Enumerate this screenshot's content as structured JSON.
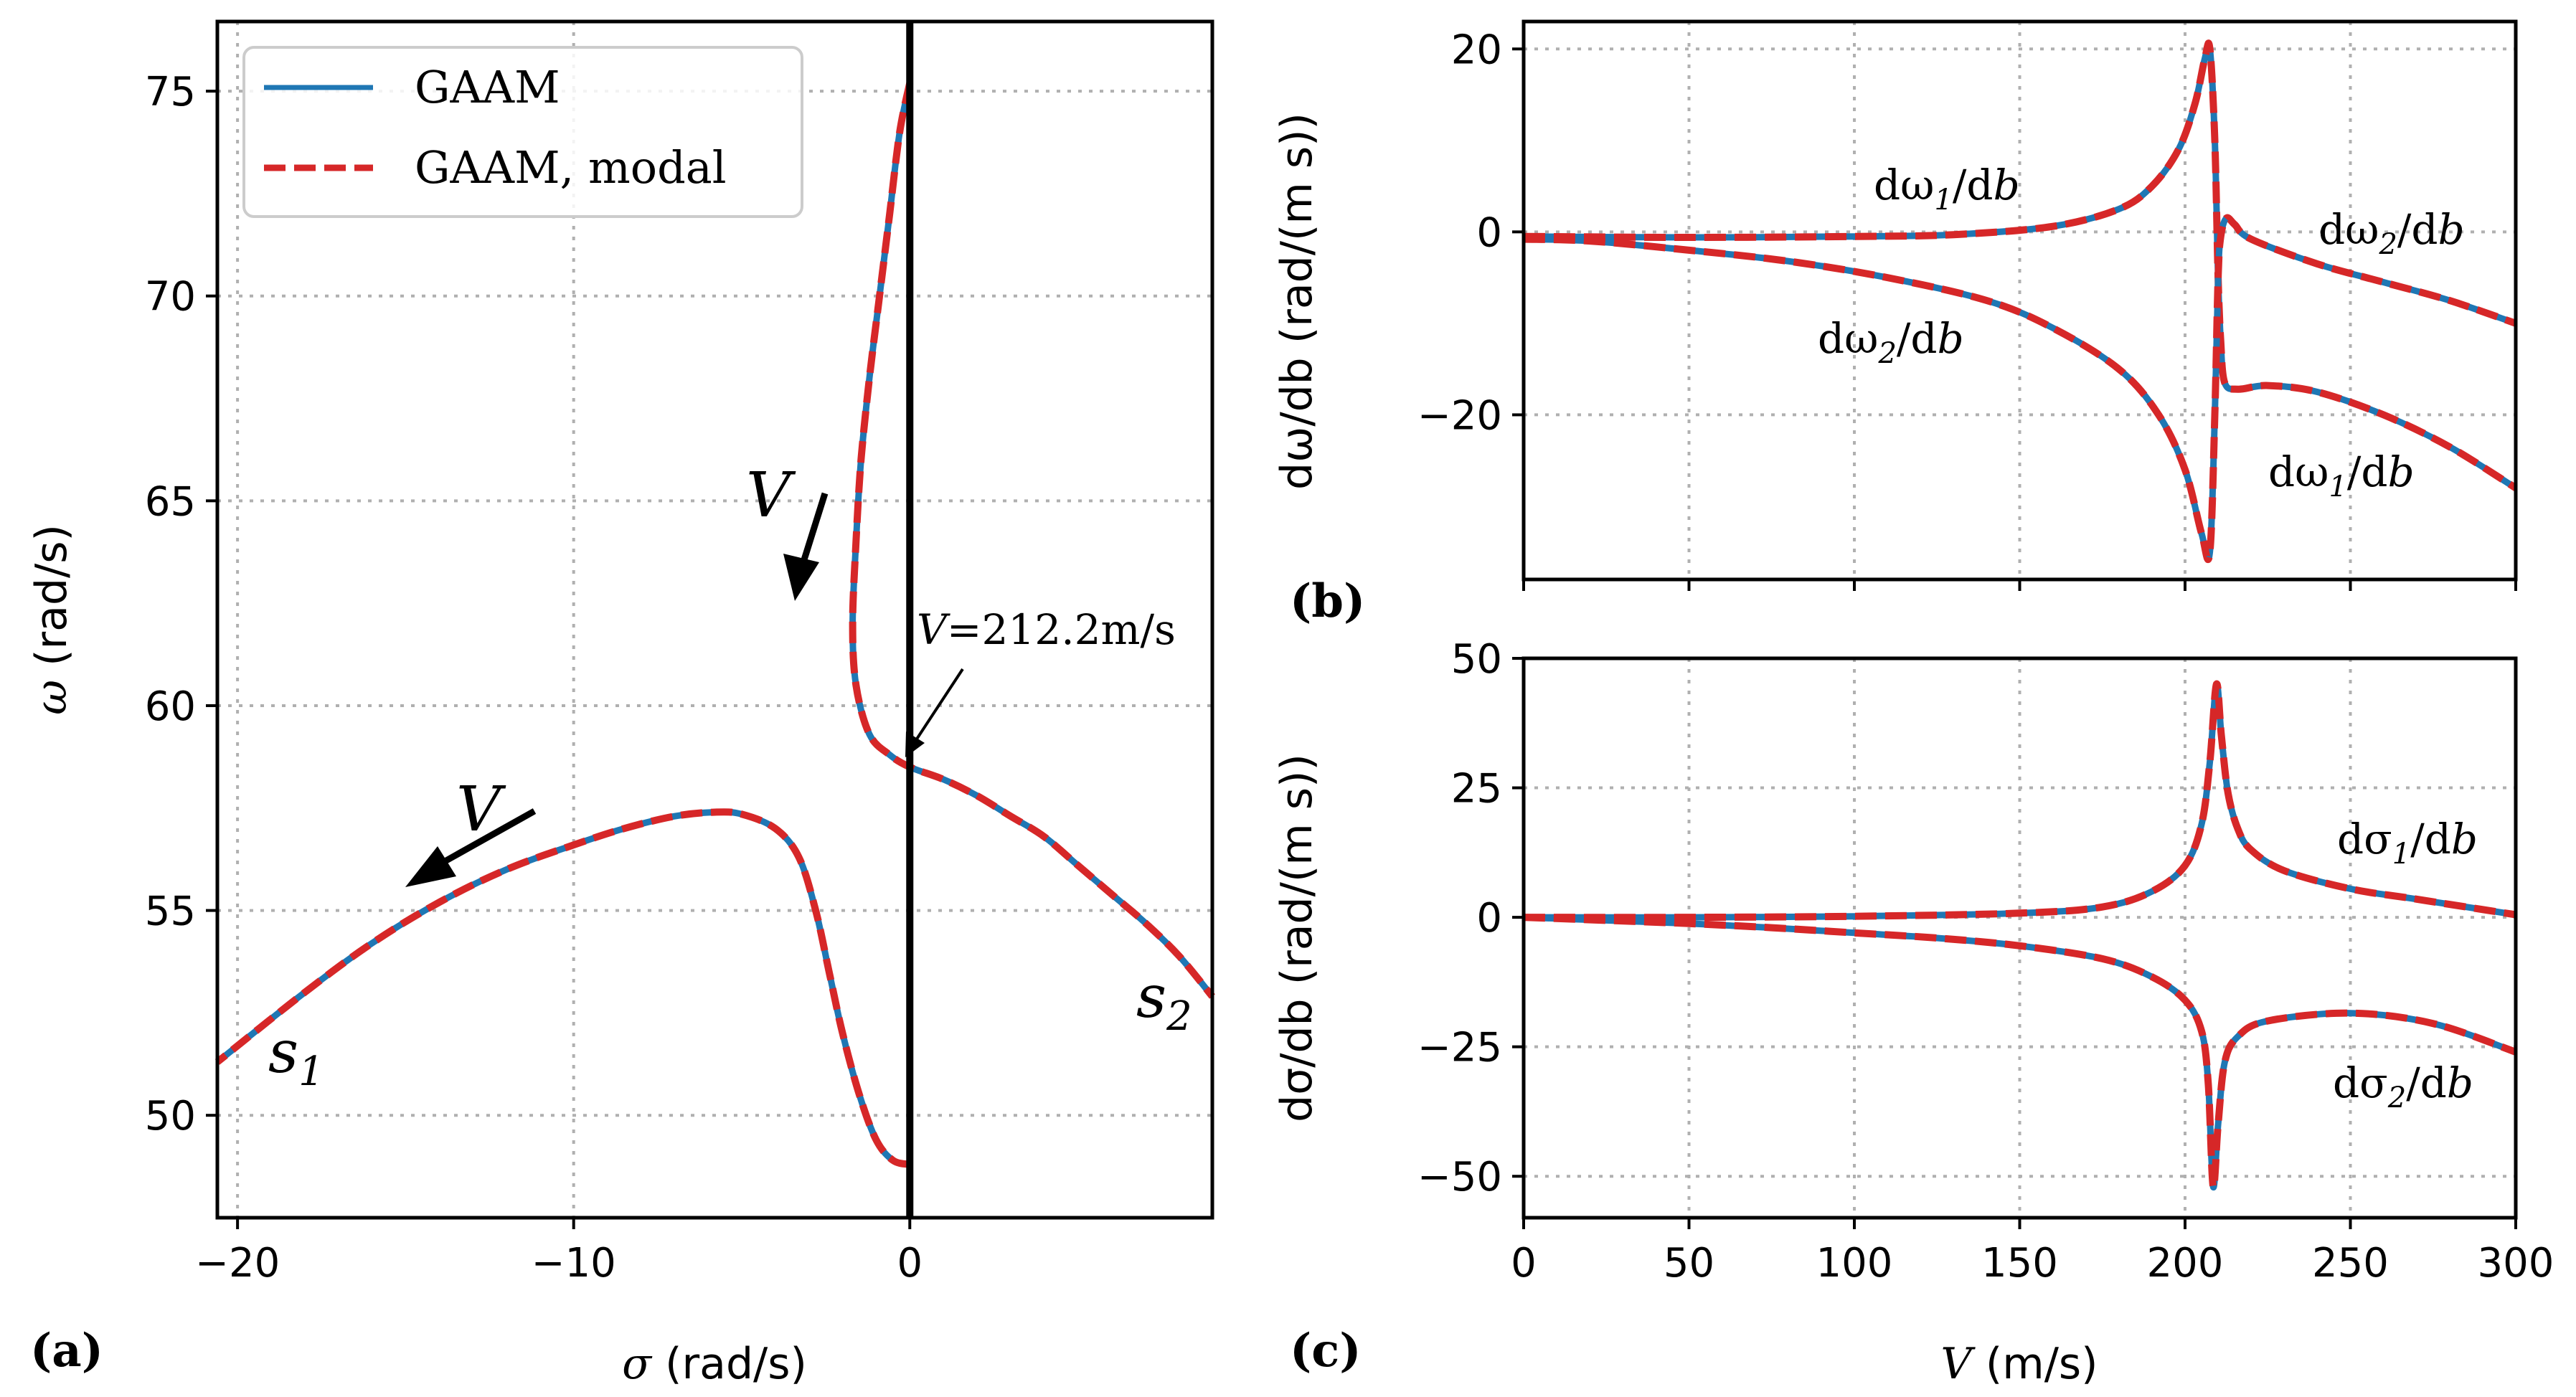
{
  "chart_data": [
    {
      "id": "a",
      "type": "line",
      "panel_label": "(a)",
      "xlabel_sym": "σ",
      "xlabel_unit": " (rad/s)",
      "ylabel_sym": "ω",
      "ylabel_unit": " (rad/s)",
      "xlim": [
        -20.6,
        9
      ],
      "ylim": [
        47.5,
        76.7
      ],
      "xticks": [
        -20,
        -10,
        0
      ],
      "xtick_labels": [
        "−20",
        "−10",
        "0"
      ],
      "yticks": [
        50,
        55,
        60,
        65,
        70,
        75
      ],
      "ytick_labels": [
        "50",
        "55",
        "60",
        "65",
        "70",
        "75"
      ],
      "grid": true,
      "legend": {
        "position": "top-left",
        "entries": [
          {
            "label": "GAAM",
            "color": "#1f77b4",
            "style": "solid"
          },
          {
            "label": "GAAM, modal",
            "color": "#d62728",
            "style": "dashed"
          }
        ]
      },
      "vertical_line_x": 0,
      "series": [
        {
          "name": "s1 branch",
          "points": [
            [
              0,
              48.8
            ],
            [
              -0.5,
              48.9
            ],
            [
              -1.0,
              49.4
            ],
            [
              -1.5,
              50.5
            ],
            [
              -2.0,
              52.0
            ],
            [
              -2.4,
              53.5
            ],
            [
              -2.8,
              55.0
            ],
            [
              -3.3,
              56.3
            ],
            [
              -4.0,
              57.0
            ],
            [
              -5.0,
              57.35
            ],
            [
              -5.8,
              57.4
            ],
            [
              -7.0,
              57.3
            ],
            [
              -8.5,
              57.0
            ],
            [
              -10.0,
              56.6
            ],
            [
              -12.0,
              56.0
            ],
            [
              -14.0,
              55.2
            ],
            [
              -16.0,
              54.2
            ],
            [
              -18.0,
              53.0
            ],
            [
              -20.6,
              51.3
            ]
          ]
        },
        {
          "name": "s2 branch",
          "points": [
            [
              0,
              75.2
            ],
            [
              -0.3,
              74.0
            ],
            [
              -0.6,
              72.0
            ],
            [
              -0.9,
              70.0
            ],
            [
              -1.2,
              68.0
            ],
            [
              -1.45,
              66.0
            ],
            [
              -1.6,
              64.0
            ],
            [
              -1.7,
              62.0
            ],
            [
              -1.6,
              60.5
            ],
            [
              -1.2,
              59.3
            ],
            [
              -0.6,
              58.8
            ],
            [
              0,
              58.5
            ],
            [
              1.0,
              58.2
            ],
            [
              2.0,
              57.8
            ],
            [
              3.0,
              57.3
            ],
            [
              4.0,
              56.8
            ],
            [
              5.0,
              56.1
            ],
            [
              6.0,
              55.4
            ],
            [
              7.0,
              54.7
            ],
            [
              8.0,
              53.9
            ],
            [
              9.0,
              52.9
            ]
          ]
        }
      ],
      "annotations": {
        "v_top": "V",
        "v_left": "V",
        "v_crit_sym": "V",
        "v_crit_value": "=212.2m/s",
        "s1_sym": "s",
        "s1_sub": "1",
        "s2_sym": "s",
        "s2_sub": "2"
      }
    },
    {
      "id": "b",
      "type": "line",
      "panel_label": "(b)",
      "ylabel": "dω/db (rad/(m s))",
      "xlim": [
        0,
        300
      ],
      "ylim": [
        -38,
        23
      ],
      "xticks": [
        0,
        50,
        100,
        150,
        200,
        250,
        300
      ],
      "yticks": [
        -20,
        0,
        20
      ],
      "ytick_labels": [
        "−20",
        "0",
        "20"
      ],
      "grid": true,
      "series": [
        {
          "name": "dω1/db",
          "points": [
            [
              0,
              -0.5
            ],
            [
              50,
              -0.6
            ],
            [
              100,
              -0.5
            ],
            [
              130,
              -0.3
            ],
            [
              160,
              0.6
            ],
            [
              180,
              2.5
            ],
            [
              190,
              5.0
            ],
            [
              198,
              9.0
            ],
            [
              203,
              14.0
            ],
            [
              206,
              19.0
            ],
            [
              207.5,
              20.0
            ],
            [
              209,
              10.0
            ],
            [
              210,
              -5.0
            ],
            [
              210.8,
              -12.0
            ],
            [
              212,
              -16.5
            ],
            [
              216,
              -17.2
            ],
            [
              225,
              -16.8
            ],
            [
              240,
              -17.5
            ],
            [
              260,
              -20.0
            ],
            [
              280,
              -23.5
            ],
            [
              300,
              -28.0
            ]
          ]
        },
        {
          "name": "dω2/db",
          "points": [
            [
              0,
              -0.8
            ],
            [
              20,
              -1.0
            ],
            [
              50,
              -2.0
            ],
            [
              80,
              -3.2
            ],
            [
              110,
              -5.0
            ],
            [
              140,
              -7.5
            ],
            [
              160,
              -10.5
            ],
            [
              180,
              -15.0
            ],
            [
              192,
              -20.0
            ],
            [
              200,
              -26.0
            ],
            [
              205,
              -33.0
            ],
            [
              207.5,
              -35.0
            ],
            [
              209,
              -20.0
            ],
            [
              210,
              -5.0
            ],
            [
              210.8,
              -0.5
            ],
            [
              212.5,
              1.5
            ],
            [
              215,
              0.8
            ],
            [
              220,
              -0.8
            ],
            [
              240,
              -3.5
            ],
            [
              260,
              -5.5
            ],
            [
              280,
              -7.5
            ],
            [
              300,
              -10.0
            ]
          ]
        }
      ],
      "labels": {
        "w1_top": {
          "pre": "dω",
          "sub": "1",
          "post": "/d",
          "var": "b"
        },
        "w2_left": {
          "pre": "dω",
          "sub": "2",
          "post": "/d",
          "var": "b"
        },
        "w2_right": {
          "pre": "dω",
          "sub": "2",
          "post": "/d",
          "var": "b"
        },
        "w1_right": {
          "pre": "dω",
          "sub": "1",
          "post": "/d",
          "var": "b"
        }
      }
    },
    {
      "id": "c",
      "type": "line",
      "panel_label": "(c)",
      "ylabel": "dσ/db (rad/(m s))",
      "xlabel_sym": "V",
      "xlabel_unit": " (m/s)",
      "xlim": [
        0,
        300
      ],
      "ylim": [
        -58,
        50
      ],
      "xticks": [
        0,
        50,
        100,
        150,
        200,
        250,
        300
      ],
      "xtick_labels": [
        "0",
        "50",
        "100",
        "150",
        "200",
        "250",
        "300"
      ],
      "yticks": [
        -50,
        -25,
        0,
        25,
        50
      ],
      "ytick_labels": [
        "−50",
        "−25",
        "0",
        "25",
        "50"
      ],
      "grid": true,
      "series": [
        {
          "name": "dσ1/db",
          "points": [
            [
              0,
              0
            ],
            [
              50,
              0
            ],
            [
              100,
              0.2
            ],
            [
              150,
              0.8
            ],
            [
              175,
              2.0
            ],
            [
              190,
              5.0
            ],
            [
              200,
              10.0
            ],
            [
              205,
              18.0
            ],
            [
              207.5,
              30.0
            ],
            [
              209.5,
              45.0
            ],
            [
              211,
              35.0
            ],
            [
              213,
              24.0
            ],
            [
              216,
              17.0
            ],
            [
              220,
              13.0
            ],
            [
              230,
              9.0
            ],
            [
              250,
              5.5
            ],
            [
              270,
              3.5
            ],
            [
              300,
              0.5
            ]
          ]
        },
        {
          "name": "dσ2/db",
          "points": [
            [
              0,
              0
            ],
            [
              25,
              -0.6
            ],
            [
              50,
              -1.2
            ],
            [
              75,
              -2.0
            ],
            [
              100,
              -3.0
            ],
            [
              125,
              -4.0
            ],
            [
              150,
              -5.5
            ],
            [
              175,
              -8.0
            ],
            [
              190,
              -11.5
            ],
            [
              200,
              -16.0
            ],
            [
              205,
              -22.0
            ],
            [
              207,
              -32.0
            ],
            [
              208.5,
              -52.0
            ],
            [
              210,
              -40.0
            ],
            [
              212,
              -28.0
            ],
            [
              216,
              -23.0
            ],
            [
              225,
              -20.0
            ],
            [
              250,
              -18.5
            ],
            [
              275,
              -20.5
            ],
            [
              300,
              -26.0
            ]
          ]
        }
      ],
      "labels": {
        "s1": {
          "pre": "dσ",
          "sub": "1",
          "post": "/d",
          "var": "b"
        },
        "s2": {
          "pre": "dσ",
          "sub": "2",
          "post": "/d",
          "var": "b"
        }
      }
    }
  ],
  "colors": {
    "gaam": "#1f77b4",
    "modal": "#d62728"
  }
}
